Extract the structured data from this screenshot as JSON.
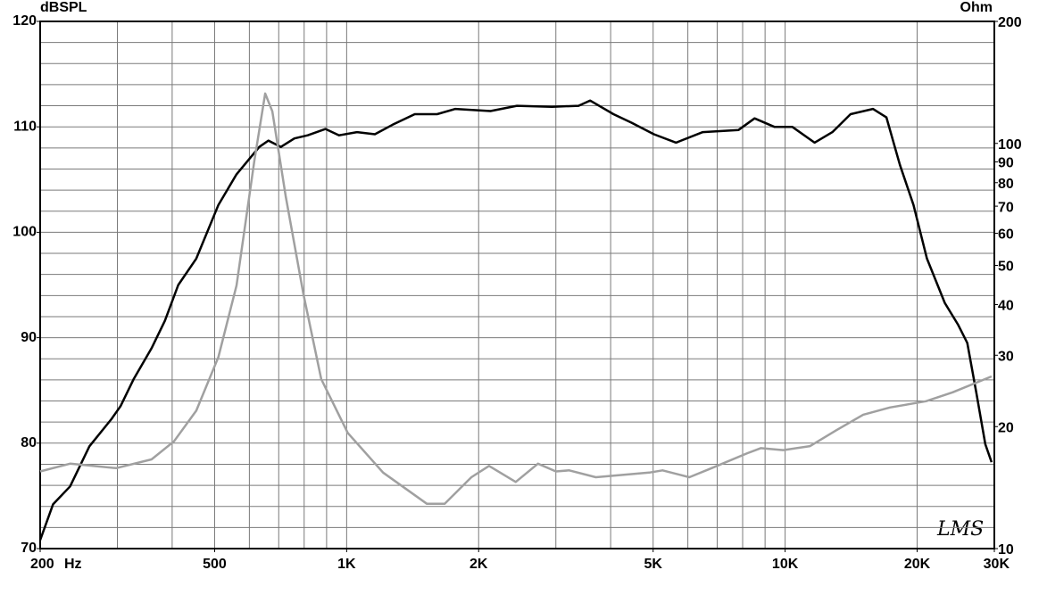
{
  "chart_data": {
    "type": "line",
    "y_label": "dBSPL",
    "y2_label": "Ohm",
    "x_unit": "Hz",
    "signature": "LMS",
    "xscale": "log",
    "y2scale": "log",
    "xlim": [
      200,
      30000
    ],
    "ylim": [
      70,
      120
    ],
    "y2lim": [
      10,
      200
    ],
    "xticks": [
      200,
      500,
      {
        "value": 1000,
        "label": "1K"
      },
      {
        "value": 2000,
        "label": "2K"
      },
      {
        "value": 5000,
        "label": "5K"
      },
      {
        "value": 10000,
        "label": "10K"
      },
      {
        "value": 20000,
        "label": "20K"
      },
      {
        "value": 30000,
        "label": "30K"
      }
    ],
    "yticks": [
      70,
      80,
      90,
      100,
      110,
      120
    ],
    "y2ticks": [
      10,
      20,
      30,
      40,
      50,
      60,
      70,
      80,
      90,
      100,
      200
    ],
    "xgrid": [
      200,
      300,
      400,
      500,
      600,
      700,
      800,
      900,
      1000,
      2000,
      3000,
      4000,
      5000,
      6000,
      7000,
      8000,
      9000,
      10000,
      20000,
      30000
    ],
    "ygrid": [
      70,
      72,
      74,
      76,
      78,
      80,
      82,
      84,
      86,
      88,
      90,
      92,
      94,
      96,
      98,
      100,
      102,
      104,
      106,
      108,
      110,
      112,
      114,
      116,
      118,
      120
    ],
    "grid": true,
    "series": [
      {
        "color": "#000000",
        "axis": "y",
        "x": [
          200,
          214,
          234,
          259,
          291,
          305,
          327,
          359,
          385,
          413,
          454,
          510,
          561,
          632,
          663,
          708,
          760,
          815,
          895,
          961,
          1056,
          1160,
          1273,
          1430,
          1608,
          1769,
          2128,
          2445,
          2940,
          3380,
          3590,
          4060,
          4460,
          5020,
          5640,
          6490,
          7830,
          8520,
          9450,
          10380,
          11670,
          12820,
          14100,
          15860,
          17020,
          18270,
          19620,
          21060,
          23130,
          24830,
          26030,
          27290,
          28610,
          29570
        ],
        "values": [
          70.8,
          74.2,
          75.9,
          79.7,
          82.3,
          83.5,
          86.1,
          89.0,
          91.6,
          95.0,
          97.5,
          102.6,
          105.5,
          108.1,
          108.7,
          108.1,
          108.9,
          109.2,
          109.8,
          109.2,
          109.5,
          109.3,
          110.2,
          111.2,
          111.2,
          111.7,
          111.5,
          112.0,
          111.9,
          112.0,
          112.5,
          111.2,
          110.4,
          109.3,
          108.5,
          109.5,
          109.7,
          110.8,
          110.0,
          110.0,
          108.5,
          109.5,
          111.2,
          111.7,
          110.9,
          106.4,
          102.6,
          97.5,
          93.3,
          91.2,
          89.5,
          84.8,
          79.9,
          78.2
        ]
      },
      {
        "color": "#a0a0a0",
        "axis": "y2",
        "x": [
          200,
          234,
          298,
          359,
          404,
          454,
          510,
          561,
          616,
          652,
          677,
          726,
          797,
          875,
          1006,
          1211,
          1524,
          1673,
          1925,
          2112,
          2430,
          2731,
          3000,
          3217,
          3700,
          4258,
          4900,
          5254,
          6048,
          6800,
          8210,
          8800,
          9900,
          11400,
          13100,
          15070,
          17340,
          20950,
          24100,
          29570
        ],
        "values": [
          15.5,
          16.2,
          15.8,
          16.6,
          18.4,
          21.9,
          29.7,
          44.6,
          90.7,
          132.8,
          120.0,
          74.0,
          42.4,
          26.2,
          19.3,
          15.4,
          12.9,
          12.9,
          15.0,
          16.0,
          14.6,
          16.2,
          15.5,
          15.6,
          15.0,
          15.2,
          15.4,
          15.6,
          15.0,
          15.8,
          17.2,
          17.7,
          17.5,
          17.9,
          19.6,
          21.4,
          22.3,
          23.1,
          24.3,
          26.6
        ]
      }
    ]
  }
}
